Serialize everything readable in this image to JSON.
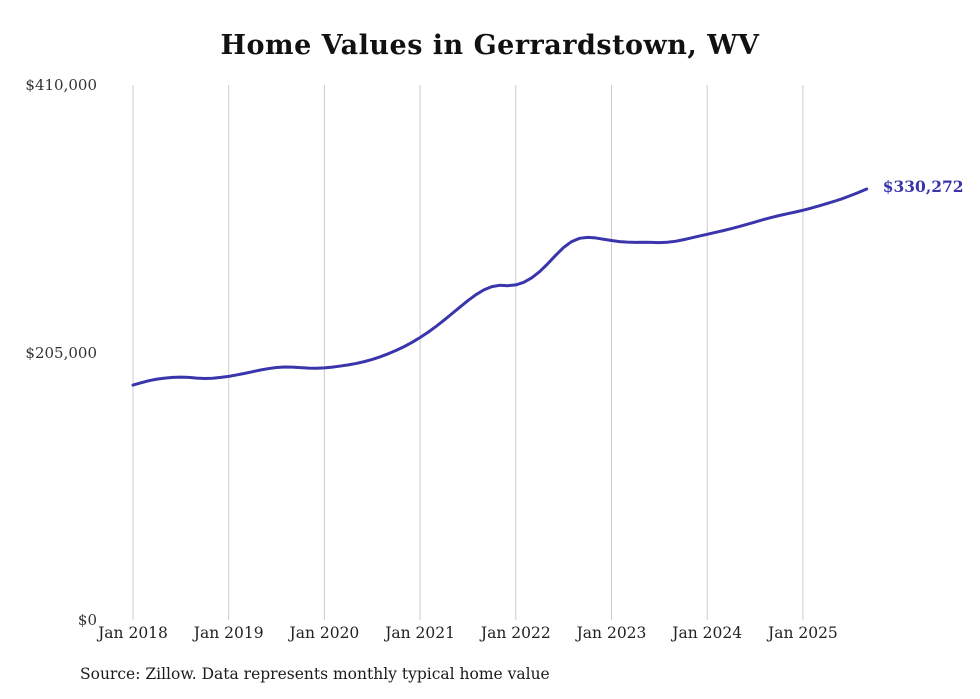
{
  "title": "Home Values in Gerrardstown, WV",
  "source_note": "Source: Zillow. Data represents monthly typical home value",
  "end_label": "$330,272",
  "colors": {
    "line": "#3a35ab",
    "grid": "#cccccc",
    "title_text": "#111111",
    "axis_text": "#333333",
    "source_text": "#1b1b1b"
  },
  "chart_data": {
    "type": "line",
    "title": "Home Values in Gerrardstown, WV",
    "x_start": "Jan 2018",
    "x_end": "Sep 2025",
    "x_frequency": "monthly",
    "x_tick_labels": [
      "Jan 2018",
      "Jan 2019",
      "Jan 2020",
      "Jan 2021",
      "Jan 2022",
      "Jan 2023",
      "Jan 2024",
      "Jan 2025"
    ],
    "y_ticks": [
      {
        "label": "$0",
        "value": 0
      },
      {
        "label": "$205,000",
        "value": 205000
      },
      {
        "label": "$410,000",
        "value": 410000
      }
    ],
    "ylim": [
      0,
      410000
    ],
    "grid": "vertical-only",
    "legend": "none",
    "series": [
      {
        "name": "Typical home value",
        "last_value": 330272,
        "monthly_values": [
          180000,
          181800,
          183400,
          184600,
          185400,
          185900,
          186100,
          185900,
          185400,
          185100,
          185300,
          185900,
          186700,
          187800,
          189000,
          190300,
          191600,
          192700,
          193500,
          193900,
          193800,
          193400,
          193000,
          192900,
          193200,
          193800,
          194600,
          195500,
          196600,
          198000,
          199700,
          201700,
          204000,
          206600,
          209500,
          212800,
          216500,
          220500,
          225000,
          229800,
          234800,
          239800,
          244800,
          249300,
          253000,
          255500,
          256500,
          256200,
          256800,
          258800,
          262200,
          267000,
          273000,
          279500,
          285500,
          290000,
          292500,
          293200,
          292800,
          291800,
          290800,
          290000,
          289600,
          289400,
          289500,
          289400,
          289200,
          289500,
          290200,
          291400,
          292800,
          294200,
          295600,
          297000,
          298400,
          299900,
          301500,
          303200,
          305000,
          306800,
          308400,
          309900,
          311300,
          312600,
          314000,
          315600,
          317300,
          319100,
          321000,
          323000,
          325300,
          327700,
          330272
        ]
      }
    ]
  }
}
